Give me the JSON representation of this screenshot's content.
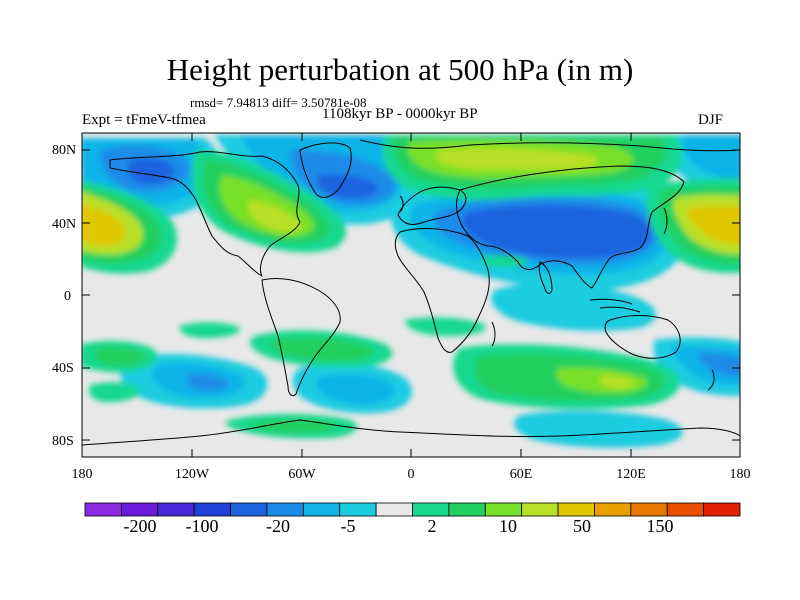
{
  "title": "Height perturbation at 500 hPa (in m)",
  "stats": "rmsd= 7.94813  diff= 3.50781e-08",
  "period": "1108kyr BP - 0000kyr BP",
  "experiment": "Expt = tFmeV-tfmea",
  "season": "DJF",
  "map": {
    "lat_ticks": [
      "80N",
      "40N",
      "0",
      "40S",
      "80S"
    ],
    "lon_ticks": [
      "180",
      "120W",
      "60W",
      "0",
      "60E",
      "120E",
      "180"
    ]
  },
  "colorbar": {
    "labels": [
      "-200",
      "-100",
      "-20",
      "-5",
      "2",
      "10",
      "50",
      "150"
    ],
    "colors": [
      "#8a2be2",
      "#6a1ad8",
      "#4a2ad8",
      "#2040d8",
      "#1a64e0",
      "#1a8ce8",
      "#10b4e8",
      "#1ccce0",
      "#e8e8e8",
      "#18d890",
      "#20d060",
      "#78e028",
      "#b8e028",
      "#e0c800",
      "#e8a000",
      "#e87800",
      "#e85000",
      "#e02000"
    ]
  },
  "colors": {
    "background": "#e8e8e8",
    "coast": "#000000"
  }
}
